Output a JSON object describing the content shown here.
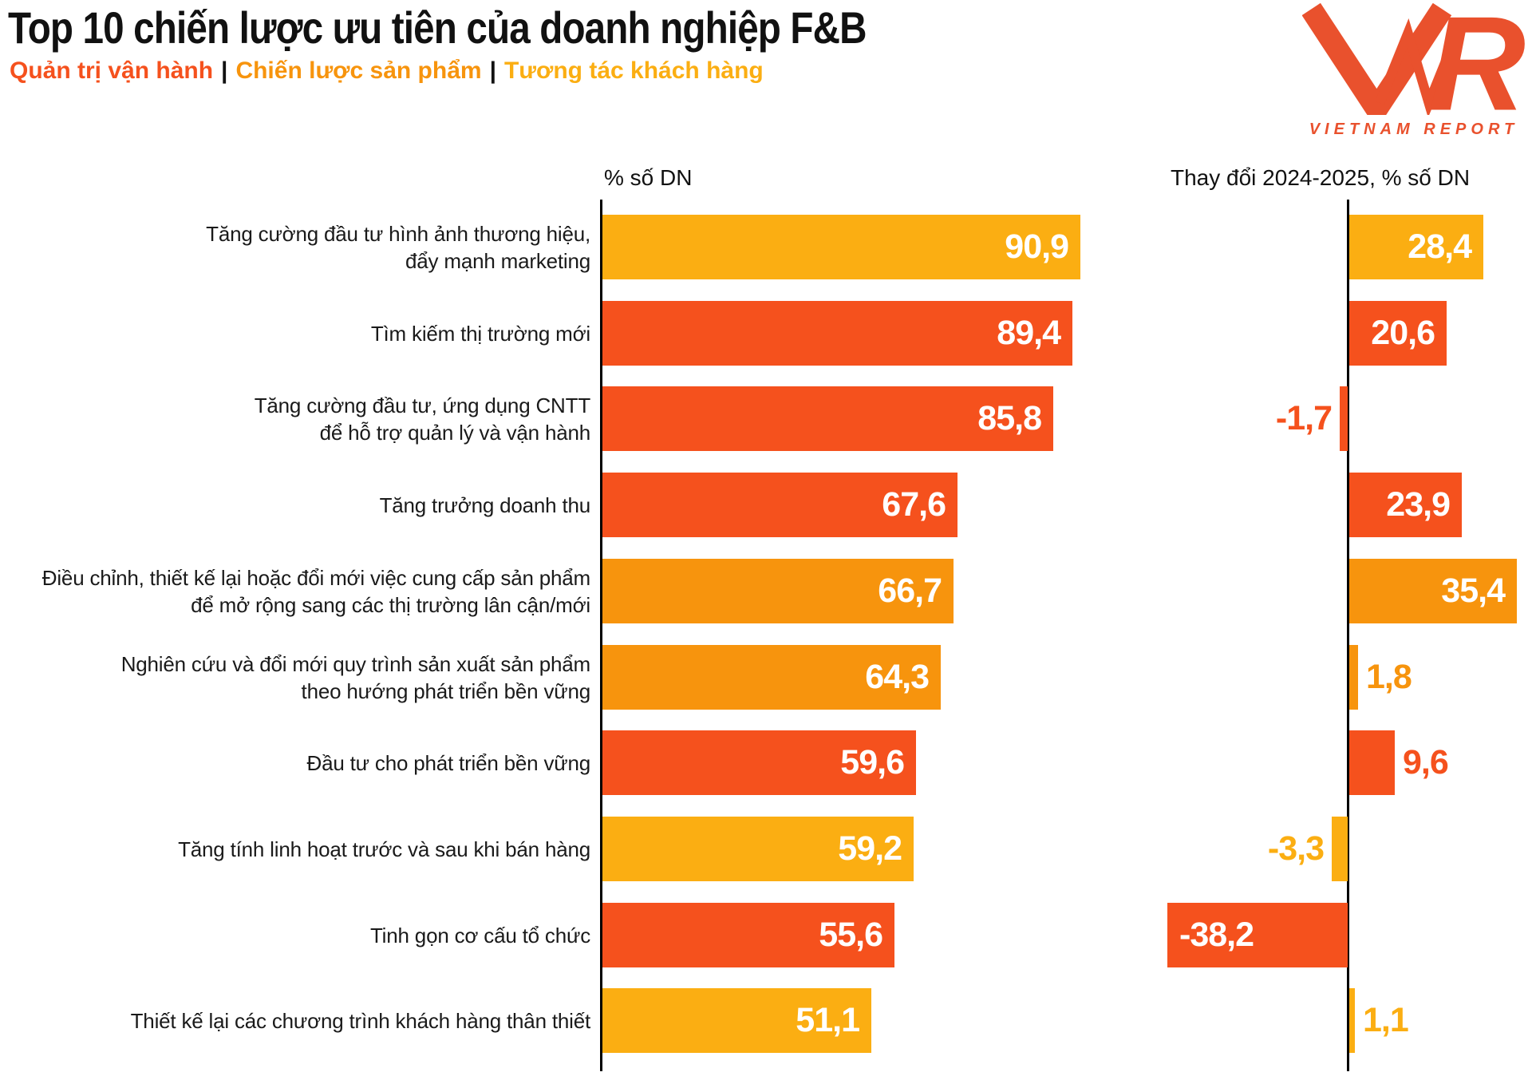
{
  "title": "Top 10 chiến lược ưu tiên của doanh nghiệp F&B",
  "legend": {
    "separator": "|",
    "items": [
      {
        "label": "Quản trị vận hành",
        "key": "operations",
        "color": "#F5511D"
      },
      {
        "label": "Chiến lược sản phẩm",
        "key": "product",
        "color": "#F7940D"
      },
      {
        "label": "Tương tác khách hàng",
        "key": "customer",
        "color": "#FBAE12"
      }
    ]
  },
  "logo": {
    "mark": "VNR",
    "text": "VIETNAM REPORT",
    "color": "#E9512D"
  },
  "columns": {
    "left_header": "% số DN",
    "right_header": "Thay đổi 2024-2025, % số DN"
  },
  "colors": {
    "operations": "#F5511D",
    "product": "#F7940D",
    "customer": "#FBAE12",
    "axis": "#000000",
    "title_text": "#111111",
    "label_text": "#1A1A1A",
    "bar_value_text": "#FFFFFF"
  },
  "chart_data": {
    "type": "bar",
    "orientation": "horizontal",
    "title": "Top 10 chiến lược ưu tiên của doanh nghiệp F&B",
    "legend_entries": [
      "Quản trị vận hành",
      "Chiến lược sản phẩm",
      "Tương tác khách hàng"
    ],
    "legend_position": "top-left",
    "grid": false,
    "categories": [
      "Tăng cường đầu tư hình ảnh thương hiệu,\nđẩy mạnh marketing",
      "Tìm kiếm thị trường mới",
      "Tăng cường đầu tư, ứng dụng CNTT\nđể hỗ trợ quản lý và vận hành",
      "Tăng trưởng doanh thu",
      "Điều chỉnh, thiết kế lại hoặc đổi mới việc cung cấp sản phẩm\nđể mở rộng sang các thị trường lân cận/mới",
      "Nghiên cứu và đổi mới quy trình sản xuất sản phẩm\ntheo hướng phát triển bền vững",
      "Đầu tư cho phát triển bền vững",
      "Tăng tính linh hoạt trước và sau khi bán hàng",
      "Tinh gọn cơ cấu tổ chức",
      "Thiết kế lại các chương trình khách hàng thân thiết"
    ],
    "category_groups": [
      "customer",
      "operations",
      "operations",
      "operations",
      "product",
      "product",
      "operations",
      "customer",
      "operations",
      "customer"
    ],
    "series": [
      {
        "name": "% số DN",
        "values": [
          90.9,
          89.4,
          85.8,
          67.6,
          66.7,
          64.3,
          59.6,
          59.2,
          55.6,
          51.1
        ],
        "labels": [
          "90,9",
          "89,4",
          "85,8",
          "67,6",
          "66,7",
          "64,3",
          "59,6",
          "59,2",
          "55,6",
          "51,1"
        ],
        "xlim": [
          0,
          95
        ]
      },
      {
        "name": "Thay đổi 2024-2025, % số DN",
        "values": [
          28.4,
          20.6,
          -1.7,
          23.9,
          35.4,
          1.8,
          9.6,
          -3.3,
          -38.2,
          1.1
        ],
        "labels": [
          "28,4",
          "20,6",
          "-1,7",
          "23,9",
          "35,4",
          "1,8",
          "9,6",
          "-3,3",
          "-38,2",
          "1,1"
        ],
        "xlim": [
          -40,
          38
        ]
      }
    ]
  }
}
